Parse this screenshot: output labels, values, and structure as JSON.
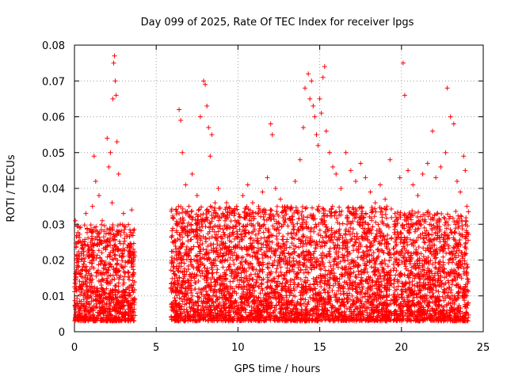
{
  "chart_data": {
    "type": "scatter",
    "title": "Day 099 of 2025, Rate Of TEC Index for receiver lpgs",
    "xlabel": "GPS time / hours",
    "ylabel": "ROTI / TECUs",
    "xlim": [
      0,
      25
    ],
    "ylim": [
      0,
      0.08
    ],
    "x_ticks": [
      0,
      5,
      10,
      15,
      20,
      25
    ],
    "x_tick_labels": [
      "0",
      "5",
      "10",
      "15",
      "20",
      "25"
    ],
    "y_ticks": [
      0,
      0.01,
      0.02,
      0.03,
      0.04,
      0.05,
      0.06,
      0.07,
      0.08
    ],
    "y_tick_labels": [
      "0",
      "0.01",
      "0.02",
      "0.03",
      "0.04",
      "0.05",
      "0.06",
      "0.07",
      "0.08"
    ],
    "grid": true,
    "marker": "plus",
    "series": [
      {
        "color": "#ff0000",
        "points": [
          [
            0.05,
            0.031
          ],
          [
            0.1,
            0.008
          ],
          [
            0.2,
            0.018
          ],
          [
            0.3,
            0.029
          ],
          [
            0.4,
            0.012
          ],
          [
            0.5,
            0.024
          ],
          [
            0.6,
            0.006
          ],
          [
            0.7,
            0.033
          ],
          [
            0.8,
            0.015
          ],
          [
            0.9,
            0.021
          ],
          [
            1.0,
            0.01
          ],
          [
            1.1,
            0.035
          ],
          [
            1.2,
            0.049
          ],
          [
            1.3,
            0.042
          ],
          [
            1.4,
            0.028
          ],
          [
            1.5,
            0.038
          ],
          [
            1.6,
            0.019
          ],
          [
            1.7,
            0.031
          ],
          [
            1.8,
            0.011
          ],
          [
            1.9,
            0.025
          ],
          [
            2.0,
            0.054
          ],
          [
            2.1,
            0.046
          ],
          [
            2.2,
            0.05
          ],
          [
            2.3,
            0.036
          ],
          [
            2.35,
            0.065
          ],
          [
            2.4,
            0.075
          ],
          [
            2.45,
            0.077
          ],
          [
            2.5,
            0.07
          ],
          [
            2.55,
            0.066
          ],
          [
            2.6,
            0.053
          ],
          [
            2.7,
            0.044
          ],
          [
            2.8,
            0.03
          ],
          [
            3.0,
            0.033
          ],
          [
            3.2,
            0.027
          ],
          [
            3.4,
            0.022
          ],
          [
            3.5,
            0.034
          ],
          [
            3.6,
            0.013
          ],
          [
            3.7,
            0.009
          ],
          [
            5.9,
            0.012
          ],
          [
            6.0,
            0.025
          ],
          [
            6.2,
            0.034
          ],
          [
            6.4,
            0.062
          ],
          [
            6.5,
            0.059
          ],
          [
            6.6,
            0.05
          ],
          [
            6.8,
            0.041
          ],
          [
            7.0,
            0.035
          ],
          [
            7.2,
            0.044
          ],
          [
            7.5,
            0.038
          ],
          [
            7.7,
            0.06
          ],
          [
            7.9,
            0.07
          ],
          [
            8.0,
            0.069
          ],
          [
            8.1,
            0.063
          ],
          [
            8.2,
            0.057
          ],
          [
            8.3,
            0.049
          ],
          [
            8.4,
            0.055
          ],
          [
            8.6,
            0.036
          ],
          [
            8.8,
            0.04
          ],
          [
            9.0,
            0.032
          ],
          [
            9.3,
            0.036
          ],
          [
            9.5,
            0.029
          ],
          [
            9.8,
            0.034
          ],
          [
            10.0,
            0.031
          ],
          [
            10.3,
            0.038
          ],
          [
            10.6,
            0.041
          ],
          [
            10.9,
            0.036
          ],
          [
            11.2,
            0.033
          ],
          [
            11.5,
            0.039
          ],
          [
            11.8,
            0.043
          ],
          [
            12.0,
            0.058
          ],
          [
            12.1,
            0.055
          ],
          [
            12.3,
            0.04
          ],
          [
            12.6,
            0.037
          ],
          [
            12.9,
            0.034
          ],
          [
            13.2,
            0.031
          ],
          [
            13.5,
            0.042
          ],
          [
            13.8,
            0.048
          ],
          [
            14.0,
            0.057
          ],
          [
            14.1,
            0.068
          ],
          [
            14.3,
            0.072
          ],
          [
            14.4,
            0.065
          ],
          [
            14.5,
            0.07
          ],
          [
            14.6,
            0.063
          ],
          [
            14.7,
            0.06
          ],
          [
            14.8,
            0.055
          ],
          [
            14.9,
            0.052
          ],
          [
            15.0,
            0.065
          ],
          [
            15.1,
            0.061
          ],
          [
            15.2,
            0.071
          ],
          [
            15.3,
            0.074
          ],
          [
            15.4,
            0.056
          ],
          [
            15.6,
            0.05
          ],
          [
            15.8,
            0.046
          ],
          [
            16.0,
            0.044
          ],
          [
            16.3,
            0.04
          ],
          [
            16.6,
            0.05
          ],
          [
            16.9,
            0.045
          ],
          [
            17.2,
            0.042
          ],
          [
            17.5,
            0.047
          ],
          [
            17.8,
            0.043
          ],
          [
            18.1,
            0.039
          ],
          [
            18.4,
            0.036
          ],
          [
            18.7,
            0.041
          ],
          [
            19.0,
            0.037
          ],
          [
            19.3,
            0.048
          ],
          [
            19.6,
            0.033
          ],
          [
            19.9,
            0.043
          ],
          [
            20.1,
            0.075
          ],
          [
            20.2,
            0.066
          ],
          [
            20.4,
            0.045
          ],
          [
            20.7,
            0.041
          ],
          [
            21.0,
            0.038
          ],
          [
            21.3,
            0.044
          ],
          [
            21.6,
            0.047
          ],
          [
            21.9,
            0.056
          ],
          [
            22.1,
            0.043
          ],
          [
            22.4,
            0.046
          ],
          [
            22.7,
            0.05
          ],
          [
            22.8,
            0.068
          ],
          [
            23.0,
            0.06
          ],
          [
            23.2,
            0.058
          ],
          [
            23.4,
            0.042
          ],
          [
            23.6,
            0.039
          ],
          [
            23.8,
            0.049
          ],
          [
            23.9,
            0.045
          ],
          [
            24.0,
            0.035
          ]
        ]
      }
    ],
    "dense_bands": [
      {
        "x0": 0.0,
        "x1": 3.7,
        "low": 0.003,
        "high": 0.03
      },
      {
        "x0": 5.9,
        "x1": 19.4,
        "low": 0.003,
        "high": 0.035
      },
      {
        "x0": 19.5,
        "x1": 24.1,
        "low": 0.003,
        "high": 0.034
      }
    ]
  }
}
